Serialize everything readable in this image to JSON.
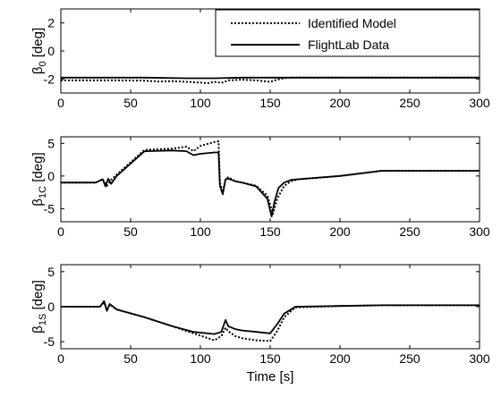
{
  "legend": {
    "placement": "top-right",
    "entries": [
      {
        "name": "Identified Model",
        "style": "dotted"
      },
      {
        "name": "FlightLab Data",
        "style": "solid"
      }
    ]
  },
  "chart_data": [
    {
      "type": "line",
      "id": "beta0",
      "ylabel_main": "β",
      "ylabel_sub": "0",
      "ylabel_unit": " [deg]",
      "xlim": [
        0,
        300
      ],
      "ylim": [
        -3,
        3
      ],
      "xticks": [
        0,
        50,
        100,
        150,
        200,
        250,
        300
      ],
      "yticks": [
        -2,
        0,
        2
      ],
      "grid": false,
      "series": [
        {
          "name": "Identified Model",
          "style": "dotted",
          "x": [
            0,
            20,
            40,
            60,
            70,
            80,
            90,
            100,
            105,
            110,
            115,
            120,
            130,
            140,
            150,
            155,
            160,
            165,
            170,
            200,
            250,
            300
          ],
          "y": [
            -2.1,
            -2.1,
            -2.1,
            -2.12,
            -2.18,
            -2.15,
            -2.2,
            -2.25,
            -2.3,
            -2.2,
            -2.28,
            -2.1,
            -2.05,
            -2.1,
            -2.2,
            -2.05,
            -1.95,
            -1.9,
            -1.9,
            -1.9,
            -1.9,
            -1.9
          ]
        },
        {
          "name": "FlightLab Data",
          "style": "solid",
          "x": [
            0,
            30,
            60,
            90,
            110,
            130,
            150,
            160,
            170,
            200,
            250,
            300
          ],
          "y": [
            -1.9,
            -1.9,
            -1.9,
            -1.95,
            -1.95,
            -1.9,
            -1.9,
            -1.9,
            -1.9,
            -1.9,
            -1.9,
            -1.9
          ]
        }
      ]
    },
    {
      "type": "line",
      "id": "beta1c",
      "ylabel_main": "β",
      "ylabel_sub": "1C",
      "ylabel_unit": " [deg]",
      "xlim": [
        0,
        300
      ],
      "ylim": [
        -7,
        6
      ],
      "xticks": [
        0,
        50,
        100,
        150,
        200,
        250,
        300
      ],
      "yticks": [
        -5,
        0,
        5
      ],
      "grid": false,
      "series": [
        {
          "name": "Identified Model",
          "style": "dotted",
          "x": [
            0,
            25,
            30,
            33,
            36,
            40,
            60,
            80,
            90,
            95,
            100,
            110,
            113,
            114,
            116,
            118,
            120,
            125,
            130,
            140,
            148,
            152,
            155,
            160,
            165,
            170,
            200,
            230,
            250,
            300
          ],
          "y": [
            -1,
            -1,
            -0.5,
            -1.5,
            -0.6,
            0.2,
            4,
            4.2,
            4.5,
            3.8,
            4.6,
            5.2,
            5.3,
            -1,
            -2.5,
            -0.5,
            -0.2,
            -0.8,
            -1,
            -1.5,
            -3,
            -5.8,
            -3.5,
            -1.5,
            -0.8,
            -0.5,
            0,
            0.8,
            0.8,
            0.8
          ]
        },
        {
          "name": "FlightLab Data",
          "style": "solid",
          "x": [
            0,
            25,
            30,
            32,
            34,
            36,
            40,
            60,
            80,
            90,
            95,
            100,
            110,
            113,
            114,
            116,
            118,
            120,
            125,
            130,
            140,
            148,
            151,
            153,
            156,
            160,
            165,
            170,
            200,
            230,
            250,
            300
          ],
          "y": [
            -1,
            -1,
            -0.5,
            -1.6,
            -0.4,
            -1.2,
            0,
            3.8,
            3.9,
            3.8,
            3.2,
            3.4,
            3.6,
            3.6,
            -1.5,
            -2.8,
            -0.5,
            -0.4,
            -0.8,
            -1,
            -1.6,
            -3.5,
            -6.2,
            -4,
            -1.8,
            -1,
            -0.6,
            -0.5,
            0,
            0.8,
            0.8,
            0.8
          ]
        }
      ]
    },
    {
      "type": "line",
      "id": "beta1s",
      "ylabel_main": "β",
      "ylabel_sub": "1S",
      "ylabel_unit": " [deg]",
      "xlabel": "Time [s]",
      "xlim": [
        0,
        300
      ],
      "ylim": [
        -6,
        6
      ],
      "xticks": [
        0,
        50,
        100,
        150,
        200,
        250,
        300
      ],
      "yticks": [
        -5,
        0,
        5
      ],
      "grid": false,
      "series": [
        {
          "name": "Identified Model",
          "style": "dotted",
          "x": [
            0,
            28,
            31,
            33,
            35,
            40,
            60,
            80,
            95,
            110,
            115,
            118,
            120,
            125,
            130,
            140,
            150,
            155,
            160,
            168,
            200,
            230,
            300
          ],
          "y": [
            0,
            0,
            0.6,
            -0.5,
            0.3,
            -0.4,
            -1.5,
            -2.8,
            -3.8,
            -4.8,
            -4.2,
            -3,
            -3.5,
            -4.2,
            -4.5,
            -4.8,
            -4.9,
            -3.5,
            -1.5,
            -0.1,
            0.1,
            0.2,
            0.2
          ]
        },
        {
          "name": "FlightLab Data",
          "style": "solid",
          "x": [
            0,
            28,
            31,
            33,
            35,
            40,
            60,
            80,
            95,
            110,
            115,
            118,
            120,
            125,
            130,
            140,
            150,
            155,
            160,
            168,
            200,
            230,
            300
          ],
          "y": [
            0,
            0,
            0.8,
            -0.6,
            0.4,
            -0.4,
            -1.5,
            -2.8,
            -3.6,
            -3.9,
            -3.6,
            -1.9,
            -2.8,
            -3.2,
            -3.4,
            -3.6,
            -3.8,
            -2.5,
            -1,
            0,
            0.1,
            0.2,
            0.2
          ]
        }
      ]
    }
  ]
}
